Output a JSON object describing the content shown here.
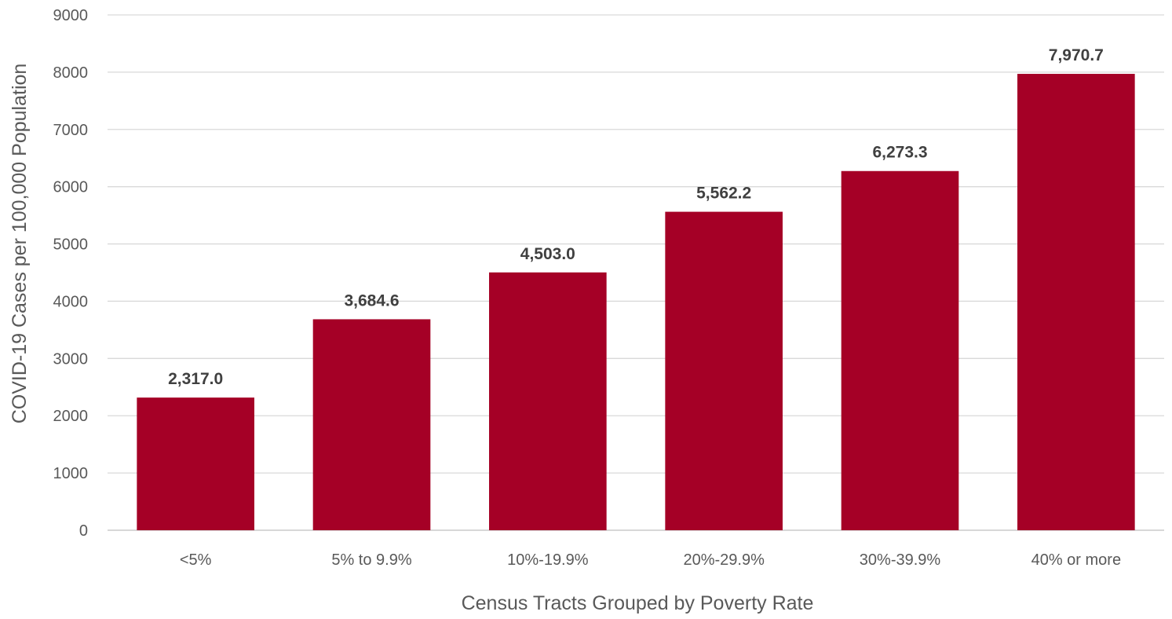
{
  "chart_data": {
    "type": "bar",
    "title": "",
    "xlabel": "Census Tracts Grouped by Poverty Rate",
    "ylabel": "COVID-19 Cases per 100,000 Population",
    "categories": [
      "<5%",
      "5% to 9.9%",
      "10%-19.9%",
      "20%-29.9%",
      "30%-39.9%",
      "40% or more"
    ],
    "values": [
      2317.0,
      3684.6,
      4503.0,
      5562.2,
      6273.3,
      7970.7
    ],
    "data_labels": [
      "2,317.0",
      "3,684.6",
      "4,503.0",
      "5,562.2",
      "6,273.3",
      "7,970.7"
    ],
    "ylim": [
      0,
      9000
    ],
    "yticks": [
      0,
      1000,
      2000,
      3000,
      4000,
      5000,
      6000,
      7000,
      8000,
      9000
    ],
    "ytick_labels": [
      "0",
      "1000",
      "2000",
      "3000",
      "4000",
      "5000",
      "6000",
      "7000",
      "8000",
      "9000"
    ],
    "grid": true,
    "legend": "none",
    "bar_color": "#A50026"
  }
}
